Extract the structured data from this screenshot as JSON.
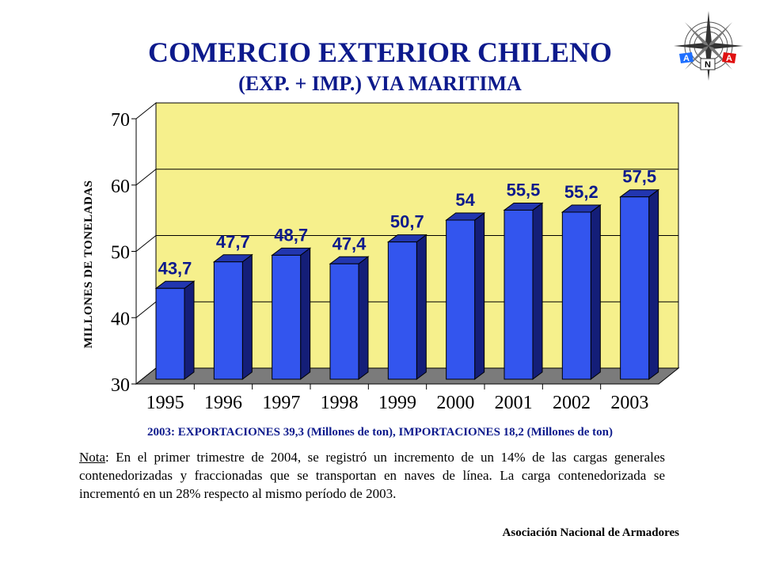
{
  "logo": {
    "icon": "compass-rose-icon",
    "letters": [
      "A",
      "N",
      "A"
    ]
  },
  "title": "COMERCIO EXTERIOR CHILENO",
  "subtitle": "(EXP.  + IMP.) VIA MARITIMA",
  "footnote": "2003: EXPORTACIONES 39,3 (Millones de ton), IMPORTACIONES 18,2 (Millones de ton)",
  "note": {
    "label": "Nota",
    "text": ": En el primer trimestre de 2004, se registró un incremento de un 14% de las cargas generales contenedorizadas y fraccionadas que se transportan en naves de línea. La carga contenedorizada se incrementó en un 28% respecto al mismo período de 2003."
  },
  "credit": "Asociación Nacional de Armadores",
  "chart_data": {
    "type": "bar",
    "style": "3d",
    "categories": [
      "1995",
      "1996",
      "1997",
      "1998",
      "1999",
      "2000",
      "2001",
      "2002",
      "2003"
    ],
    "values": [
      43.7,
      47.7,
      48.7,
      47.4,
      50.7,
      54,
      55.5,
      55.2,
      57.5
    ],
    "data_labels": [
      "43,7",
      "47,7",
      "48,7",
      "47,4",
      "50,7",
      "54",
      "55,5",
      "55,2",
      "57,5"
    ],
    "title": "",
    "xlabel": "",
    "ylabel": "MILLONES DE TONELADAS",
    "ylim": [
      30,
      70
    ],
    "yticks": [
      30,
      40,
      50,
      60,
      70
    ],
    "grid": true,
    "colors": {
      "bar_front": "#3355ee",
      "bar_side": "#141e78",
      "bar_top": "#2236b0",
      "wall": "#f6f08c",
      "floor": "#7b7b7b",
      "label": "#0d1a8c"
    }
  }
}
